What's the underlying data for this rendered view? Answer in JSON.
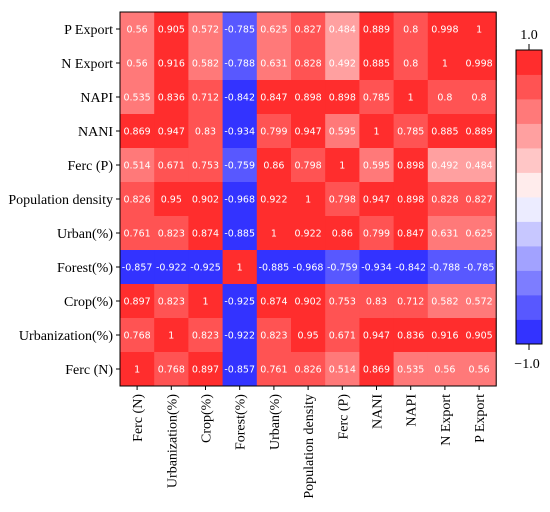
{
  "chart_data": {
    "type": "heatmap",
    "title": "",
    "xlabel": "",
    "ylabel": "",
    "x_categories": [
      "Ferc (N)",
      "Urbanization(%)",
      "Crop(%)",
      "Forest(%)",
      "Urban(%)",
      "Population density",
      "Ferc (P)",
      "NANI",
      "NAPI",
      "N Export",
      "P Export"
    ],
    "y_categories": [
      "P Export",
      "N Export",
      "NAPI",
      "NANI",
      "Ferc (P)",
      "Population density",
      "Urban(%)",
      "Forest(%)",
      "Crop(%)",
      "Urbanization(%)",
      "Ferc (N)"
    ],
    "values": [
      [
        0.56,
        0.905,
        0.572,
        -0.785,
        0.625,
        0.827,
        0.484,
        0.889,
        0.8,
        0.998,
        1
      ],
      [
        0.56,
        0.916,
        0.582,
        -0.788,
        0.631,
        0.828,
        0.492,
        0.885,
        0.8,
        1,
        0.998
      ],
      [
        0.535,
        0.836,
        0.712,
        -0.842,
        0.847,
        0.898,
        0.898,
        0.785,
        1,
        0.8,
        0.8
      ],
      [
        0.869,
        0.947,
        0.83,
        -0.934,
        0.799,
        0.947,
        0.595,
        1,
        0.785,
        0.885,
        0.889
      ],
      [
        0.514,
        0.671,
        0.753,
        -0.759,
        0.86,
        0.798,
        1,
        0.595,
        0.898,
        0.492,
        0.484
      ],
      [
        0.826,
        0.95,
        0.902,
        -0.968,
        0.922,
        1,
        0.798,
        0.947,
        0.898,
        0.828,
        0.827
      ],
      [
        0.761,
        0.823,
        0.874,
        -0.885,
        1,
        0.922,
        0.86,
        0.799,
        0.847,
        0.631,
        0.625
      ],
      [
        -0.857,
        -0.922,
        -0.925,
        1,
        -0.885,
        -0.968,
        -0.759,
        -0.934,
        -0.842,
        -0.788,
        -0.785
      ],
      [
        0.897,
        0.823,
        1,
        -0.925,
        0.874,
        0.902,
        0.753,
        0.83,
        0.712,
        0.582,
        0.572
      ],
      [
        0.768,
        1,
        0.823,
        -0.922,
        0.823,
        0.95,
        0.671,
        0.947,
        0.836,
        0.916,
        0.905
      ],
      [
        1,
        0.768,
        0.897,
        -0.857,
        0.761,
        0.826,
        0.514,
        0.869,
        0.535,
        0.56,
        0.56
      ]
    ],
    "value_labels": [
      [
        "0.56",
        "0.905",
        "0.572",
        "-0.785",
        "0.625",
        "0.827",
        "0.484",
        "0.889",
        "0.8",
        "0.998",
        "1"
      ],
      [
        "0.56",
        "0.916",
        "0.582",
        "-0.788",
        "0.631",
        "0.828",
        "0.492",
        "0.885",
        "0.8",
        "1",
        "0.998"
      ],
      [
        "0.535",
        "0.836",
        "0.712",
        "-0.842",
        "0.847",
        "0.898",
        "0.898",
        "0.785",
        "1",
        "0.8",
        "0.8"
      ],
      [
        "0.869",
        "0.947",
        "0.83",
        "-0.934",
        "0.799",
        "0.947",
        "0.595",
        "1",
        "0.785",
        "0.885",
        "0.889"
      ],
      [
        "0.514",
        "0.671",
        "0.753",
        "-0.759",
        "0.86",
        "0.798",
        "1",
        "0.595",
        "0.898",
        "0.492",
        "0.484"
      ],
      [
        "0.826",
        "0.95",
        "0.902",
        "-0.968",
        "0.922",
        "1",
        "0.798",
        "0.947",
        "0.898",
        "0.828",
        "0.827"
      ],
      [
        "0.761",
        "0.823",
        "0.874",
        "-0.885",
        "1",
        "0.922",
        "0.86",
        "0.799",
        "0.847",
        "0.631",
        "0.625"
      ],
      [
        "-0.857",
        "-0.922",
        "-0.925",
        "1",
        "-0.885",
        "-0.968",
        "-0.759",
        "-0.934",
        "-0.842",
        "-0.788",
        "-0.785"
      ],
      [
        "0.897",
        "0.823",
        "1",
        "-0.925",
        "0.874",
        "0.902",
        "0.753",
        "0.83",
        "0.712",
        "0.582",
        "0.572"
      ],
      [
        "0.768",
        "1",
        "0.823",
        "-0.922",
        "0.823",
        "0.95",
        "0.671",
        "0.947",
        "0.836",
        "0.916",
        "0.905"
      ],
      [
        "1",
        "0.768",
        "0.897",
        "-0.857",
        "0.761",
        "0.826",
        "0.514",
        "0.869",
        "0.535",
        "0.56",
        "0.56"
      ]
    ],
    "colorbar": {
      "min": -1.0,
      "max": 1.0,
      "tick_labels": [
        "1.0",
        "−1.0"
      ],
      "levels": 12,
      "colors": {
        "negative": "#2020ff",
        "neutral": "#ffffff",
        "positive": "#ff1a1a"
      }
    },
    "grid": false,
    "legend_position": "right"
  }
}
